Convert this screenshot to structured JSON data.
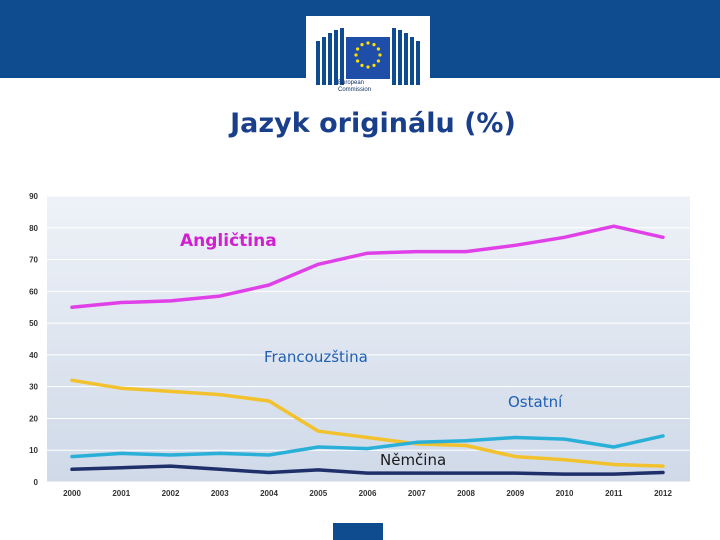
{
  "header": {
    "logo_text_line1": "European",
    "logo_text_line2": "Commission"
  },
  "title": "Jazyk originálu (%)",
  "chart_data": {
    "type": "line",
    "title": "Jazyk originálu (%)",
    "xlabel": "",
    "ylabel": "",
    "x": [
      "2000",
      "2001",
      "2002",
      "2003",
      "2004",
      "2005",
      "2006",
      "2007",
      "2008",
      "2009",
      "2010",
      "2011",
      "2012"
    ],
    "y_ticks": [
      "0",
      "10",
      "20",
      "30",
      "40",
      "50",
      "60",
      "70",
      "80",
      "90"
    ],
    "ylim": [
      0,
      90
    ],
    "grid": true,
    "series": [
      {
        "name": "Angličtina",
        "color": "#e040e8",
        "label_color": "#d020d0",
        "label_bold": true,
        "values": [
          55,
          56.5,
          57,
          58.5,
          62,
          68.5,
          72,
          72.5,
          72.5,
          74.5,
          77,
          80.5,
          77
        ]
      },
      {
        "name": "Francouzština",
        "color": "#f2c22e",
        "label_color": "#1f5fb4",
        "label_bold": false,
        "values": [
          32,
          29.5,
          28.5,
          27.5,
          25.5,
          16,
          14,
          12,
          11.5,
          8,
          7,
          5.5,
          5
        ]
      },
      {
        "name": "Ostatní",
        "color": "#2ab0d8",
        "label_color": "#1f5fb4",
        "label_bold": false,
        "values": [
          8,
          9,
          8.5,
          9,
          8.5,
          11,
          10.5,
          12.5,
          13,
          14,
          13.5,
          11,
          14.5
        ]
      },
      {
        "name": "Němčina",
        "color": "#1f2f6a",
        "label_color": "#1a1a1a",
        "label_bold": false,
        "values": [
          4,
          4.5,
          5,
          4,
          3,
          3.8,
          2.8,
          2.8,
          2.8,
          2.8,
          2.5,
          2.5,
          3
        ]
      }
    ]
  }
}
